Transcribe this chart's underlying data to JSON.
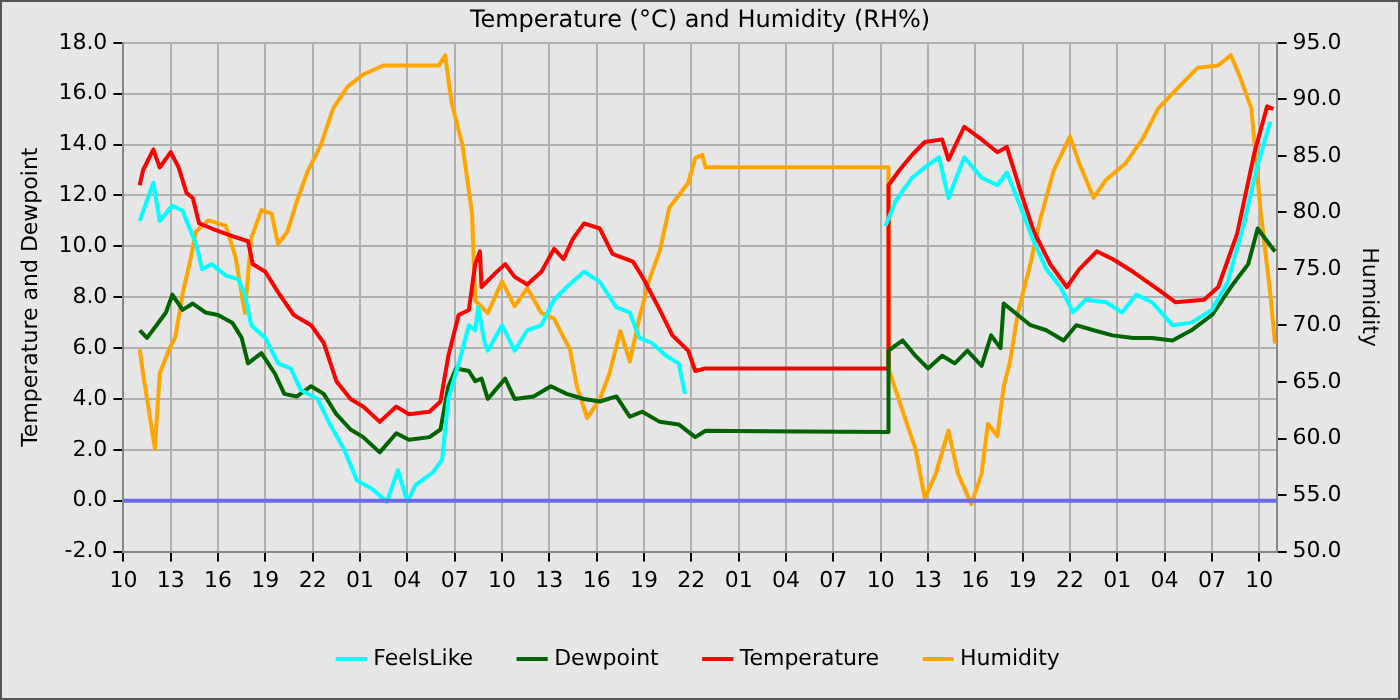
{
  "chart_data": {
    "type": "line",
    "title": "Temperature (°C) and Humidity (RH%)",
    "ylabel": "Temperature and Dewpoint",
    "y2label": "Humidity",
    "xlim": [
      "--01-01T10:00",
      "--01-04T11:06"
    ],
    "xticks": [
      {
        "value": "--01-01T10:00",
        "label": "10"
      },
      {
        "value": "--01-01T13:00",
        "label": "13"
      },
      {
        "value": "--01-01T16:00",
        "label": "16"
      },
      {
        "value": "--01-01T19:00",
        "label": "19"
      },
      {
        "value": "--01-01T22:00",
        "label": "22"
      },
      {
        "value": "--01-02T01:00",
        "label": "01"
      },
      {
        "value": "--01-02T04:00",
        "label": "04"
      },
      {
        "value": "--01-02T07:00",
        "label": "07"
      },
      {
        "value": "--01-02T10:00",
        "label": "10"
      },
      {
        "value": "--01-02T13:00",
        "label": "13"
      },
      {
        "value": "--01-02T16:00",
        "label": "16"
      },
      {
        "value": "--01-02T19:00",
        "label": "19"
      },
      {
        "value": "--01-02T22:00",
        "label": "22"
      },
      {
        "value": "--01-03T01:00",
        "label": "01"
      },
      {
        "value": "--01-03T04:00",
        "label": "04"
      },
      {
        "value": "--01-03T07:00",
        "label": "07"
      },
      {
        "value": "--01-03T10:00",
        "label": "10"
      },
      {
        "value": "--01-03T13:00",
        "label": "13"
      },
      {
        "value": "--01-03T16:00",
        "label": "16"
      },
      {
        "value": "--01-03T19:00",
        "label": "19"
      },
      {
        "value": "--01-03T22:00",
        "label": "22"
      },
      {
        "value": "--01-04T01:00",
        "label": "01"
      },
      {
        "value": "--01-04T04:00",
        "label": "04"
      },
      {
        "value": "--01-04T07:00",
        "label": "07"
      },
      {
        "value": "--01-04T10:00",
        "label": "10"
      }
    ],
    "ylim": [
      -2,
      18
    ],
    "yticks": [
      {
        "value": -2,
        "label": "-2.0"
      },
      {
        "value": 0,
        "label": "0.0"
      },
      {
        "value": 2,
        "label": "2.0"
      },
      {
        "value": 4,
        "label": "4.0"
      },
      {
        "value": 6,
        "label": "6.0"
      },
      {
        "value": 8,
        "label": "8.0"
      },
      {
        "value": 10,
        "label": "10.0"
      },
      {
        "value": 12,
        "label": "12.0"
      },
      {
        "value": 14,
        "label": "14.0"
      },
      {
        "value": 16,
        "label": "16.0"
      },
      {
        "value": 18,
        "label": "18.0"
      }
    ],
    "y2lim": [
      50,
      95
    ],
    "y2ticks": [
      {
        "value": 50,
        "label": "50.0"
      },
      {
        "value": 55,
        "label": "55.0"
      },
      {
        "value": 60,
        "label": "60.0"
      },
      {
        "value": 65,
        "label": "65.0"
      },
      {
        "value": 70,
        "label": "70.0"
      },
      {
        "value": 75,
        "label": "75.0"
      },
      {
        "value": 80,
        "label": "80.0"
      },
      {
        "value": 85,
        "label": "85.0"
      },
      {
        "value": 90,
        "label": "90.0"
      },
      {
        "value": 95,
        "label": "95.0"
      }
    ],
    "grid": true,
    "legend": "bottom",
    "line_style": "solid",
    "ref_lines": [
      {
        "axis": "y",
        "value": 0,
        "color": "#6b6bea"
      }
    ],
    "series": [
      {
        "name": "FeelsLike",
        "color": "#00ffff",
        "x": [
          "--01-01T11:02",
          "--01-01T11:30",
          "--01-01T11:54",
          "--01-01T12:18",
          "--01-01T13:06",
          "--01-01T13:45",
          "--01-01T14:12",
          "--01-01T14:36",
          "--01-01T15:00",
          "--01-01T15:36",
          "--01-01T16:30",
          "--01-01T17:18",
          "--01-01T17:42",
          "--01-01T18:06",
          "--01-01T19:00",
          "--01-01T19:48",
          "--01-01T20:36",
          "--01-01T21:15",
          "--01-01T22:18",
          "--01-01T23:06",
          "--01-02T00:00",
          "--01-02T00:48",
          "--01-02T01:48",
          "--01-02T02:42",
          "--01-02T03:24",
          "--01-02T04:00",
          "--01-02T04:30",
          "--01-02T05:36",
          "--01-02T06:12",
          "--01-02T06:36",
          "--01-02T07:15",
          "--01-02T07:54",
          "--01-02T08:18",
          "--01-02T08:30",
          "--01-02T08:54",
          "--01-02T09:06",
          "--01-02T10:00",
          "--01-02T10:48",
          "--01-02T11:36",
          "--01-02T12:30",
          "--01-02T13:18",
          "--01-02T14:06",
          "--01-02T15:12",
          "--01-02T16:12",
          "--01-02T17:15",
          "--01-02T18:06",
          "--01-02T18:42",
          "--01-02T19:30",
          "--01-02T20:24",
          "--01-02T21:12",
          "--01-02T21:36",
          "--01-03T02:00",
          "--01-03T10:18",
          "--01-03T10:58",
          "--01-03T12:00",
          "--01-03T12:48",
          "--01-03T13:42",
          "--01-03T14:18",
          "--01-03T15:18",
          "--01-03T16:24",
          "--01-03T17:24",
          "--01-03T18:00",
          "--01-03T18:54",
          "--01-03T19:42",
          "--01-03T20:30",
          "--01-03T21:24",
          "--01-03T22:12",
          "--01-03T23:00",
          "--01-04T00:18",
          "--01-04T01:18",
          "--01-04T02:12",
          "--01-04T03:12",
          "--01-04T04:30",
          "--01-04T05:42",
          "--01-04T07:00",
          "--01-04T08:00",
          "--01-04T09:00",
          "--01-04T09:54",
          "--01-04T10:42"
        ],
        "values": [
          11.0,
          11.8,
          12.5,
          11.0,
          11.6,
          11.4,
          10.7,
          10.1,
          9.1,
          9.3,
          8.85,
          8.7,
          8.1,
          6.9,
          6.4,
          5.4,
          5.2,
          4.35,
          4.0,
          3.0,
          2.0,
          0.8,
          0.45,
          -0.05,
          1.2,
          -0.05,
          0.6,
          1.1,
          1.6,
          4.0,
          5.4,
          6.9,
          6.7,
          7.6,
          6.2,
          5.9,
          6.9,
          5.9,
          6.7,
          6.9,
          7.9,
          8.4,
          9.0,
          8.6,
          7.6,
          7.4,
          6.4,
          6.2,
          5.7,
          5.4,
          4.2,
          null,
          10.8,
          11.8,
          12.7,
          13.1,
          13.5,
          11.9,
          13.5,
          12.7,
          12.4,
          12.9,
          11.5,
          10.2,
          9.1,
          8.4,
          7.4,
          7.9,
          7.8,
          7.4,
          8.1,
          7.8,
          6.9,
          7.0,
          7.5,
          8.6,
          10.8,
          13.2,
          14.9
        ]
      },
      {
        "name": "Dewpoint",
        "color": "#006400",
        "x": [
          "--01-01T11:02",
          "--01-01T11:30",
          "--01-01T12:06",
          "--01-01T12:42",
          "--01-01T13:06",
          "--01-01T13:45",
          "--01-01T14:24",
          "--01-01T15:12",
          "--01-01T16:00",
          "--01-01T16:54",
          "--01-01T17:30",
          "--01-01T17:54",
          "--01-01T18:45",
          "--01-01T19:36",
          "--01-01T20:12",
          "--01-01T21:00",
          "--01-01T21:54",
          "--01-01T22:42",
          "--01-01T23:30",
          "--01-02T00:24",
          "--01-02T01:12",
          "--01-02T02:15",
          "--01-02T03:18",
          "--01-02T04:06",
          "--01-02T05:24",
          "--01-02T06:06",
          "--01-02T06:36",
          "--01-02T07:06",
          "--01-02T07:54",
          "--01-02T08:18",
          "--01-02T08:42",
          "--01-02T09:06",
          "--01-02T10:12",
          "--01-02T10:48",
          "--01-02T12:00",
          "--01-02T13:06",
          "--01-02T14:06",
          "--01-02T15:12",
          "--01-02T16:12",
          "--01-02T17:15",
          "--01-02T18:06",
          "--01-02T18:54",
          "--01-02T20:00",
          "--01-02T21:12",
          "--01-02T22:15",
          "--01-02T22:54",
          "--01-03T10:30",
          "--01-03T10:30",
          "--01-03T11:24",
          "--01-03T12:12",
          "--01-03T13:00",
          "--01-03T13:54",
          "--01-03T14:42",
          "--01-03T15:30",
          "--01-03T16:24",
          "--01-03T17:00",
          "--01-03T17:36",
          "--01-03T17:48",
          "--01-03T18:30",
          "--01-03T19:30",
          "--01-03T20:30",
          "--01-03T21:36",
          "--01-03T22:24",
          "--01-03T23:30",
          "--01-04T00:42",
          "--01-04T02:00",
          "--01-04T03:12",
          "--01-04T04:30",
          "--01-04T05:42",
          "--01-04T07:00",
          "--01-04T08:12",
          "--01-04T09:18",
          "--01-04T09:54",
          "--01-04T10:30",
          "--01-04T11:00"
        ],
        "values": [
          6.7,
          6.4,
          6.9,
          7.4,
          8.1,
          7.5,
          7.75,
          7.4,
          7.3,
          7.0,
          6.4,
          5.4,
          5.8,
          5.0,
          4.2,
          4.1,
          4.5,
          4.2,
          3.4,
          2.8,
          2.5,
          1.9,
          2.65,
          2.4,
          2.5,
          2.8,
          4.5,
          5.2,
          5.1,
          4.7,
          4.8,
          4.0,
          4.8,
          4.0,
          4.1,
          4.5,
          4.2,
          4.0,
          3.9,
          4.1,
          3.3,
          3.5,
          3.1,
          3.0,
          2.5,
          2.75,
          2.7,
          5.9,
          6.3,
          5.7,
          5.2,
          5.7,
          5.4,
          5.9,
          5.3,
          6.5,
          6.0,
          7.75,
          7.4,
          6.9,
          6.7,
          6.3,
          6.9,
          6.7,
          6.5,
          6.4,
          6.4,
          6.3,
          6.7,
          7.3,
          8.4,
          9.3,
          10.7,
          10.2,
          9.8
        ]
      },
      {
        "name": "Temperature",
        "color": "#ff0000",
        "x": [
          "--01-01T11:02",
          "--01-01T11:15",
          "--01-01T11:54",
          "--01-01T12:18",
          "--01-01T13:00",
          "--01-01T13:30",
          "--01-01T14:00",
          "--01-01T14:24",
          "--01-01T14:48",
          "--01-01T15:36",
          "--01-01T16:54",
          "--01-01T17:54",
          "--01-01T18:12",
          "--01-01T19:00",
          "--01-01T19:48",
          "--01-01T20:48",
          "--01-01T21:54",
          "--01-01T22:42",
          "--01-01T23:30",
          "--01-02T00:24",
          "--01-02T01:12",
          "--01-02T02:15",
          "--01-02T03:18",
          "--01-02T04:06",
          "--01-02T05:24",
          "--01-02T06:06",
          "--01-02T06:36",
          "--01-02T07:15",
          "--01-02T07:54",
          "--01-02T08:18",
          "--01-02T08:36",
          "--01-02T08:42",
          "--01-02T09:30",
          "--01-02T10:12",
          "--01-02T10:48",
          "--01-02T11:36",
          "--01-02T12:30",
          "--01-02T13:18",
          "--01-02T13:54",
          "--01-02T14:30",
          "--01-02T15:12",
          "--01-02T16:12",
          "--01-02T17:00",
          "--01-02T18:18",
          "--01-02T18:54",
          "--01-02T20:00",
          "--01-02T20:48",
          "--01-02T21:48",
          "--01-02T22:15",
          "--01-02T22:54",
          "--01-03T10:30",
          "--01-03T10:30",
          "--01-03T11:12",
          "--01-03T12:00",
          "--01-03T12:48",
          "--01-03T13:54",
          "--01-03T14:18",
          "--01-03T15:18",
          "--01-03T16:24",
          "--01-03T17:24",
          "--01-03T18:00",
          "--01-03T18:54",
          "--01-03T19:42",
          "--01-03T20:45",
          "--01-03T21:48",
          "--01-03T22:36",
          "--01-03T23:42",
          "--01-04T00:42",
          "--01-04T02:00",
          "--01-04T03:36",
          "--01-04T04:42",
          "--01-04T06:30",
          "--01-04T07:24",
          "--01-04T08:36",
          "--01-04T09:42",
          "--01-04T10:30",
          "--01-04T10:54"
        ],
        "values": [
          12.4,
          13.0,
          13.8,
          13.1,
          13.7,
          13.1,
          12.1,
          11.9,
          10.9,
          10.7,
          10.4,
          10.2,
          9.3,
          9.0,
          8.2,
          7.3,
          6.9,
          6.2,
          4.7,
          4.0,
          3.7,
          3.1,
          3.7,
          3.4,
          3.5,
          3.9,
          5.7,
          7.3,
          7.5,
          9.3,
          9.8,
          8.4,
          8.9,
          9.3,
          8.8,
          8.5,
          9.0,
          9.9,
          9.5,
          10.3,
          10.9,
          10.7,
          9.7,
          9.4,
          8.8,
          7.5,
          6.5,
          5.9,
          5.1,
          5.2,
          5.2,
          12.4,
          13.0,
          13.6,
          14.1,
          14.2,
          13.4,
          14.7,
          14.2,
          13.7,
          13.9,
          12.1,
          10.6,
          9.3,
          8.4,
          9.1,
          9.8,
          9.5,
          9.0,
          8.3,
          7.8,
          7.9,
          8.4,
          10.5,
          13.7,
          15.5,
          15.4
        ]
      },
      {
        "name": "Humidity",
        "color": "#ffa500",
        "axis": "y2",
        "x": [
          "--01-01T11:02",
          "--01-01T11:15",
          "--01-01T11:30",
          "--01-01T12:00",
          "--01-01T12:18",
          "--01-01T12:54",
          "--01-01T13:18",
          "--01-01T13:45",
          "--01-01T14:12",
          "--01-01T14:36",
          "--01-01T15:24",
          "--01-01T16:30",
          "--01-01T17:06",
          "--01-01T17:42",
          "--01-01T18:06",
          "--01-01T18:45",
          "--01-01T19:24",
          "--01-01T19:48",
          "--01-01T20:24",
          "--01-01T21:00",
          "--01-01T21:42",
          "--01-01T22:30",
          "--01-01T23:18",
          "--01-02T00:12",
          "--01-02T01:12",
          "--01-02T02:30",
          "--01-02T06:00",
          "--01-02T06:24",
          "--01-02T06:48",
          "--01-02T07:30",
          "--01-02T08:06",
          "--01-02T08:18",
          "--01-02T09:06",
          "--01-02T10:00",
          "--01-02T10:48",
          "--01-02T11:36",
          "--01-02T12:30",
          "--01-02T13:18",
          "--01-02T13:42",
          "--01-02T14:18",
          "--01-02T14:45",
          "--01-02T15:24",
          "--01-02T16:12",
          "--01-02T16:48",
          "--01-02T17:30",
          "--01-02T18:06",
          "--01-02T18:42",
          "--01-02T19:18",
          "--01-02T20:00",
          "--01-02T20:36",
          "--01-02T21:12",
          "--01-02T21:48",
          "--01-02T22:15",
          "--01-02T22:42",
          "--01-02T22:54",
          "--01-03T10:30",
          "--01-03T10:30",
          "--01-03T11:24",
          "--01-03T12:12",
          "--01-03T12:48",
          "--01-03T13:30",
          "--01-03T14:18",
          "--01-03T14:54",
          "--01-03T15:45",
          "--01-03T16:24",
          "--01-03T16:48",
          "--01-03T17:24",
          "--01-03T17:48",
          "--01-03T18:12",
          "--01-03T18:42",
          "--01-03T19:30",
          "--01-03T20:06",
          "--01-03T20:58",
          "--01-03T22:00",
          "--01-03T22:36",
          "--01-03T23:30",
          "--01-04T00:18",
          "--01-04T01:30",
          "--01-04T02:36",
          "--01-04T03:36",
          "--01-04T04:54",
          "--01-04T06:06",
          "--01-04T07:24",
          "--01-04T08:12",
          "--01-04T08:48",
          "--01-04T09:30",
          "--01-04T10:06",
          "--01-04T10:42",
          "--01-04T11:00"
        ],
        "values": [
          67.9,
          65.7,
          63.5,
          59.1,
          65.7,
          67.9,
          69.0,
          72.8,
          75.5,
          78.3,
          79.3,
          78.8,
          76.1,
          71.1,
          77.7,
          80.2,
          79.9,
          77.2,
          78.3,
          81.0,
          83.7,
          85.9,
          89.2,
          91.1,
          92.2,
          93.0,
          93.0,
          93.9,
          89.7,
          85.9,
          79.9,
          72.2,
          71.1,
          73.9,
          71.7,
          73.3,
          71.1,
          70.6,
          69.5,
          67.9,
          64.6,
          61.8,
          63.5,
          65.7,
          69.5,
          66.8,
          70.6,
          73.9,
          76.6,
          80.4,
          81.5,
          82.6,
          84.8,
          85.1,
          84.0,
          84.0,
          66.2,
          62.4,
          59.1,
          54.7,
          56.9,
          60.7,
          56.9,
          54.2,
          56.9,
          61.3,
          60.2,
          64.6,
          66.8,
          71.1,
          75.5,
          79.3,
          83.7,
          86.7,
          84.3,
          81.3,
          82.9,
          84.3,
          86.5,
          89.2,
          91.1,
          92.8,
          93.0,
          93.9,
          91.9,
          89.2,
          79.9,
          72.8,
          68.4
        ]
      }
    ]
  }
}
